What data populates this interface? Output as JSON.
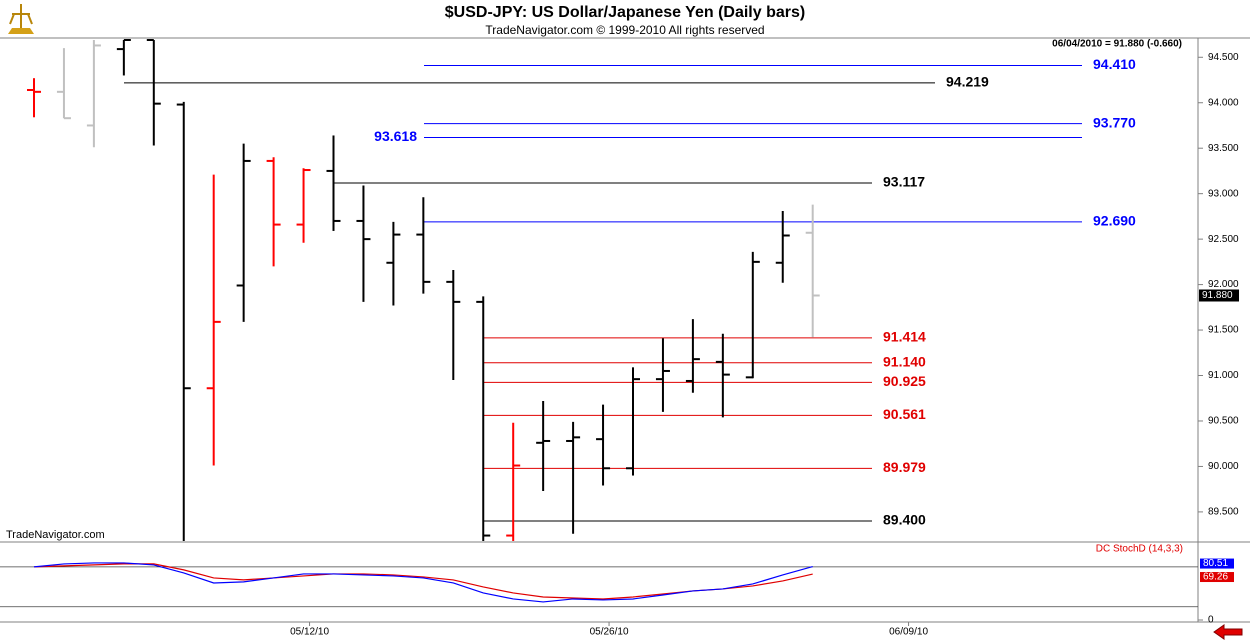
{
  "chart_data": [
    {
      "type": "ohlc",
      "title": "$USD-JPY:  US Dollar/Japanese Yen  (Daily bars)",
      "subtitle": "TradeNavigator.com © 1999-2010 All rights reserved",
      "info": "06/04/2010 = 91.880 (-0.660)",
      "watermark": "TradeNavigator.com",
      "categories": [
        null,
        null,
        null,
        null,
        null,
        null,
        null,
        null,
        null,
        "05/12/10",
        null,
        null,
        null,
        null,
        null,
        null,
        null,
        null,
        null,
        "05/26/10",
        null,
        null,
        null,
        null,
        null,
        null,
        null,
        null,
        null,
        "06/09/10",
        null,
        null,
        null,
        null,
        null,
        null,
        null,
        null,
        null
      ],
      "open": [
        94.14,
        94.12,
        93.75,
        94.59,
        94.69,
        93.98,
        90.86,
        91.99,
        93.36,
        92.66,
        93.25,
        92.7,
        92.24,
        92.55,
        92.03,
        91.81,
        89.24,
        90.26,
        90.28,
        90.3,
        89.98,
        90.96,
        90.94,
        91.15,
        90.98,
        92.24,
        92.57,
        null,
        null,
        null,
        null,
        null,
        null,
        null,
        null,
        null,
        null,
        null,
        null
      ],
      "high": [
        94.27,
        94.6,
        94.69,
        94.69,
        94.69,
        94.01,
        93.21,
        93.55,
        93.4,
        93.28,
        93.64,
        93.09,
        92.69,
        92.96,
        92.16,
        91.87,
        90.48,
        90.72,
        90.49,
        90.68,
        91.09,
        91.41,
        91.62,
        91.46,
        92.36,
        92.81,
        92.88,
        null,
        null,
        null,
        null,
        null,
        null,
        null,
        null,
        null,
        null,
        null,
        null
      ],
      "low": [
        93.84,
        93.83,
        93.51,
        94.3,
        93.53,
        89.18,
        90.01,
        91.59,
        92.2,
        92.46,
        92.59,
        91.81,
        91.77,
        91.9,
        90.95,
        89.18,
        89.18,
        89.73,
        89.26,
        89.79,
        89.9,
        90.6,
        90.81,
        90.54,
        90.97,
        92.02,
        91.42,
        null,
        null,
        null,
        null,
        null,
        null,
        null,
        null,
        null,
        null,
        null,
        null
      ],
      "close": [
        94.12,
        93.83,
        94.63,
        94.69,
        93.99,
        90.86,
        91.59,
        93.36,
        92.66,
        93.26,
        92.7,
        92.5,
        92.55,
        92.03,
        91.81,
        89.24,
        90.01,
        90.28,
        90.32,
        89.98,
        90.96,
        91.05,
        91.18,
        91.01,
        92.25,
        92.54,
        91.88,
        null,
        null,
        null,
        null,
        null,
        null,
        null,
        null,
        null,
        null,
        null,
        null
      ],
      "bar_colors": [
        "#ff0000",
        "#c0c0c0",
        "#c0c0c0",
        "#000000",
        "#000000",
        "#000000",
        "#ff0000",
        "#000000",
        "#ff0000",
        "#ff0000",
        "#000000",
        "#000000",
        "#000000",
        "#000000",
        "#000000",
        "#000000",
        "#ff0000",
        "#000000",
        "#000000",
        "#000000",
        "#000000",
        "#000000",
        "#000000",
        "#000000",
        "#000000",
        "#000000",
        "#c0c0c0",
        null,
        null,
        null,
        null,
        null,
        null,
        null,
        null,
        null,
        null,
        null,
        null
      ],
      "ylim": [
        89.18,
        94.69
      ],
      "yticks": [
        {
          "value": 94.5,
          "label": "94.500"
        },
        {
          "value": 94,
          "label": "94.000"
        },
        {
          "value": 93.5,
          "label": "93.500"
        },
        {
          "value": 93,
          "label": "93.000"
        },
        {
          "value": 92.5,
          "label": "92.500"
        },
        {
          "value": 92,
          "label": "92.000"
        },
        {
          "value": 91.5,
          "label": "91.500"
        },
        {
          "value": 91,
          "label": "91.000"
        },
        {
          "value": 90.5,
          "label": "90.500"
        },
        {
          "value": 90,
          "label": "90.000"
        },
        {
          "value": 89.5,
          "label": "89.500"
        }
      ],
      "levels": [
        {
          "value": 94.41,
          "label": "94.410",
          "color": "#0000ff"
        },
        {
          "value": 94.219,
          "label": "94.219",
          "color": "#000000"
        },
        {
          "value": 93.77,
          "label": "93.770",
          "color": "#0000ff"
        },
        {
          "value": 93.618,
          "label": "93.618",
          "color": "#0000ff"
        },
        {
          "value": 93.117,
          "label": "93.117",
          "color": "#000000"
        },
        {
          "value": 92.69,
          "label": "92.690",
          "color": "#0000ff"
        },
        {
          "value": 91.414,
          "label": "91.414",
          "color": "#e00000"
        },
        {
          "value": 91.14,
          "label": "91.140",
          "color": "#e00000"
        },
        {
          "value": 90.925,
          "label": "90.925",
          "color": "#e00000"
        },
        {
          "value": 90.561,
          "label": "90.561",
          "color": "#e00000"
        },
        {
          "value": 89.979,
          "label": "89.979",
          "color": "#e00000"
        },
        {
          "value": 89.4,
          "label": "89.400",
          "color": "#000000"
        }
      ],
      "last_price": {
        "value": 91.88,
        "label": "91.880"
      }
    },
    {
      "type": "line",
      "title": "DC StochD (14,3,3)",
      "series": [
        {
          "color": "#0000ff",
          "values": [
            80.0,
            84.5,
            86.0,
            86.0,
            83.0,
            70.9,
            55.8,
            57.4,
            63.4,
            69.4,
            69.4,
            67.9,
            66.4,
            63.4,
            55.8,
            40.8,
            31.7,
            27.2,
            31.7,
            30.2,
            31.7,
            37.7,
            43.8,
            46.8,
            54.3,
            67.9,
            80.51
          ]
        },
        {
          "color": "#e00000",
          "values": [
            80.0,
            81.5,
            83.0,
            84.5,
            84.5,
            75.5,
            63.4,
            60.4,
            63.4,
            66.4,
            69.4,
            69.4,
            67.9,
            64.9,
            60.4,
            49.8,
            40.8,
            34.7,
            33.2,
            31.7,
            34.7,
            39.2,
            43.8,
            46.8,
            51.3,
            58.9,
            69.26
          ]
        }
      ],
      "ylim": [
        -3,
        116
      ],
      "yticks": [
        0
      ],
      "levels": [
        80,
        20
      ]
    }
  ]
}
